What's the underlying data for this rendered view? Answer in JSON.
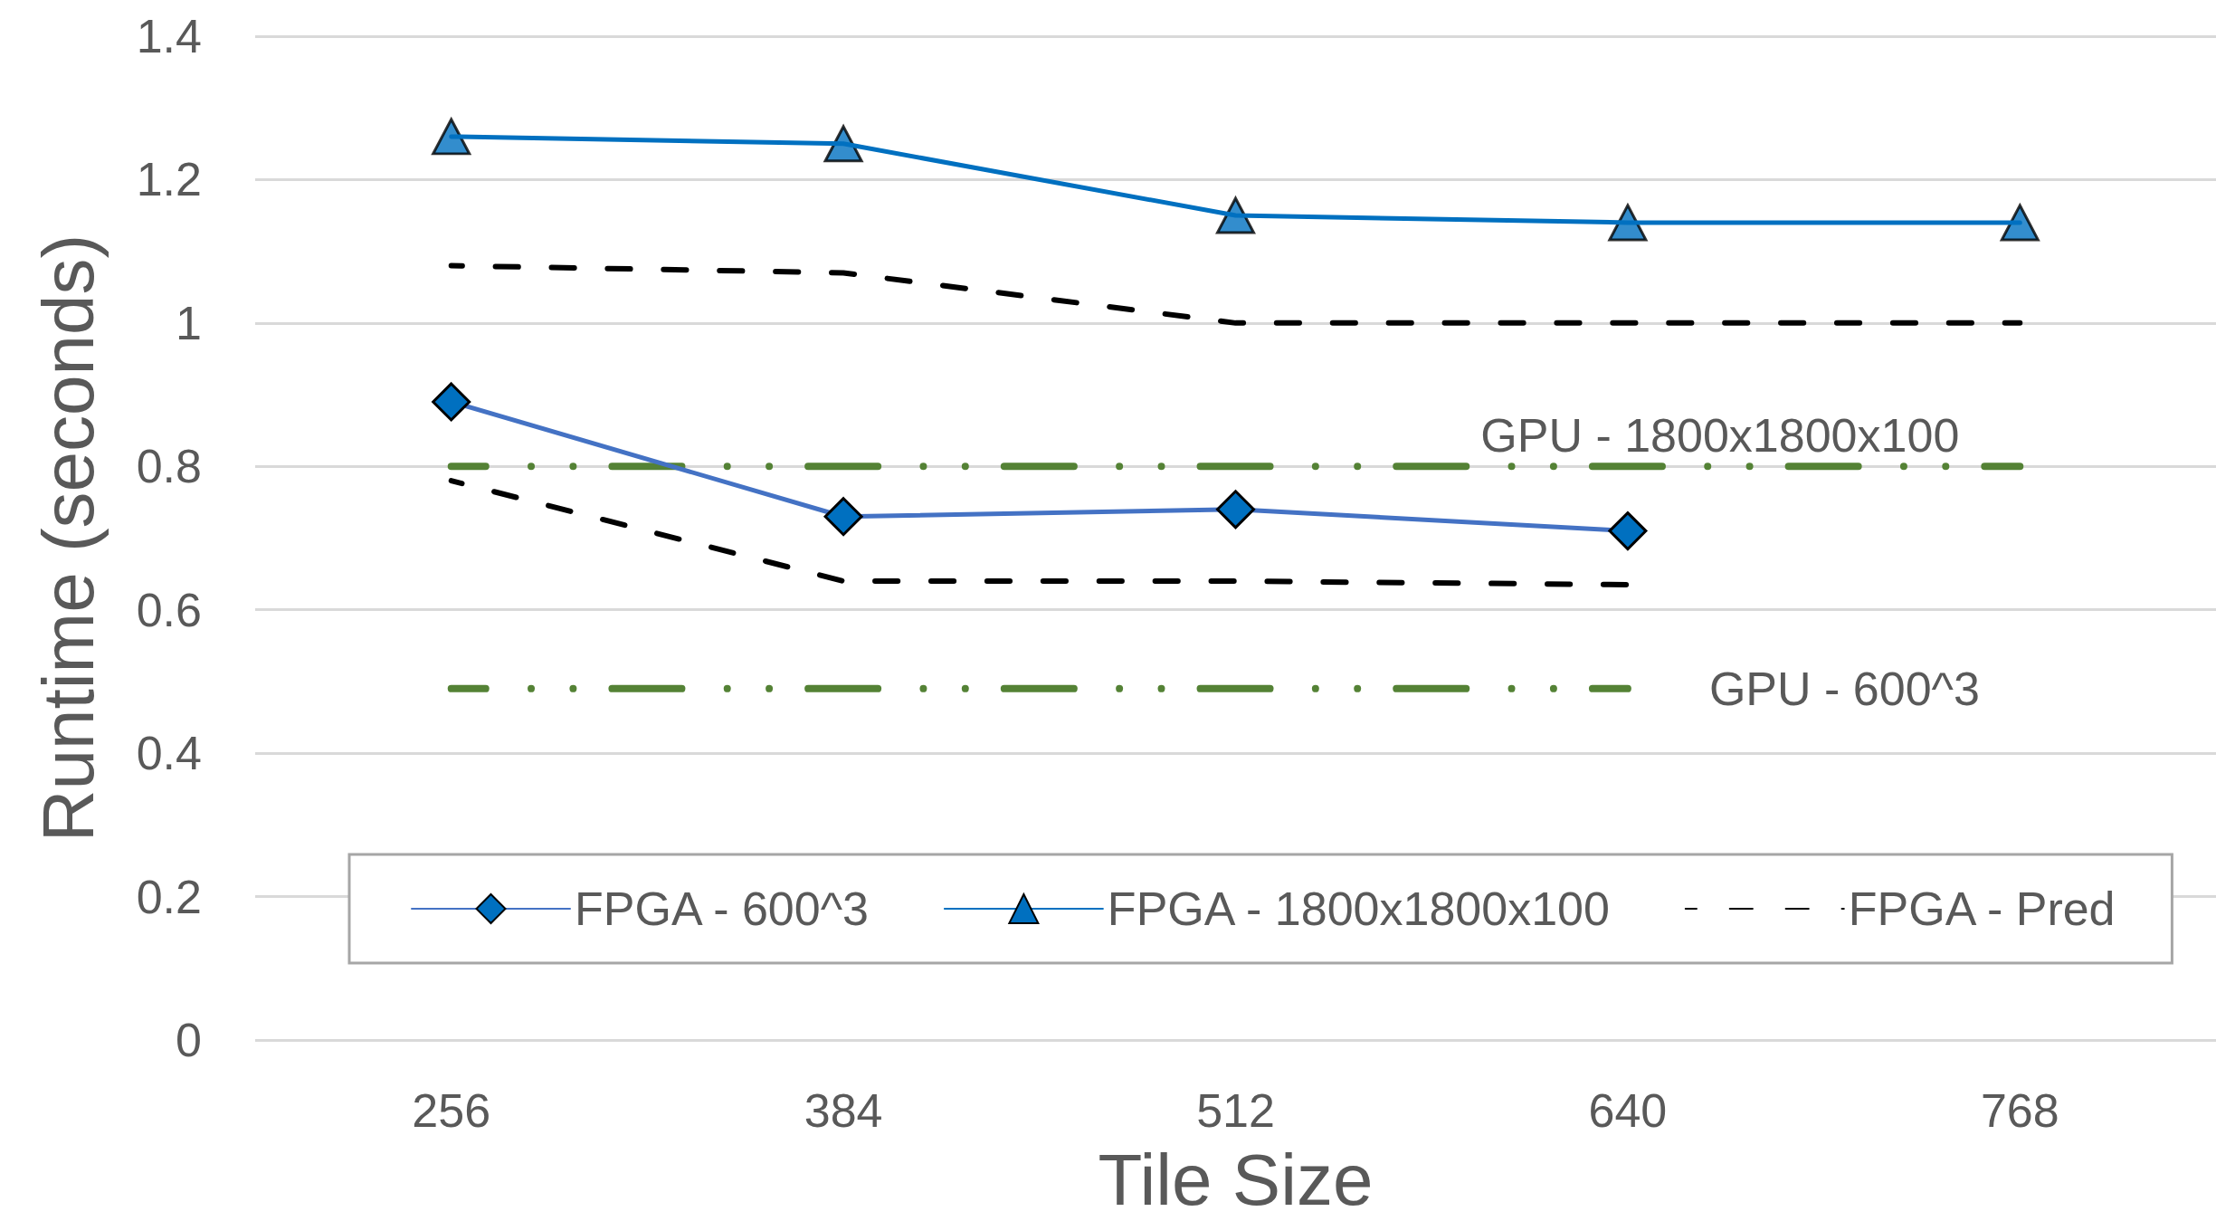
{
  "chart_data": {
    "type": "line",
    "xlabel": "Tile Size",
    "ylabel": "Runtime (seconds)",
    "categories": [
      "256",
      "384",
      "512",
      "640",
      "768"
    ],
    "series": [
      {
        "name": "FPGA - 600^3",
        "color": "#4472c4",
        "colors": [
          "#0070c0",
          "#0070c0",
          "#0070c0",
          "#0070c0",
          null
        ],
        "values": [
          0.89,
          0.73,
          0.74,
          0.71,
          null
        ],
        "marker": "diamond",
        "line_style": "solid"
      },
      {
        "name": "FPGA - 1800x1800x100",
        "color": "#0070c0",
        "values": [
          1.26,
          1.25,
          1.15,
          1.14,
          1.14
        ],
        "marker": "triangle",
        "line_style": "solid"
      },
      {
        "name": "FPGA - Pred",
        "color": "#000000",
        "values": [
          1.08,
          1.07,
          1.0,
          1.0,
          1.0
        ],
        "marker": "none",
        "line_style": "dashed"
      },
      {
        "color": "#000000",
        "values": [
          0.78,
          0.64,
          0.64,
          0.635,
          null
        ],
        "marker": "none",
        "line_style": "dashed"
      },
      {
        "color": "#548235",
        "values": [
          0.8,
          0.8,
          0.8,
          0.8,
          0.8
        ],
        "marker": "none",
        "line_style": "dashdot"
      },
      {
        "color": "#548235",
        "values": [
          0.49,
          0.49,
          0.49,
          0.49,
          null
        ],
        "marker": "none",
        "line_style": "dashdot"
      }
    ],
    "ylim": [
      0,
      1.4
    ],
    "yticks": [
      0,
      0.2,
      0.4,
      0.6,
      0.8,
      1,
      1.2,
      1.4
    ],
    "grid": "y",
    "legend": "bottom",
    "annotations": [
      {
        "text": "GPU - 1800x1800x100",
        "x": "768",
        "y": 0.8
      },
      {
        "text": "GPU - 600^3",
        "x": "640",
        "y": 0.49
      }
    ]
  }
}
